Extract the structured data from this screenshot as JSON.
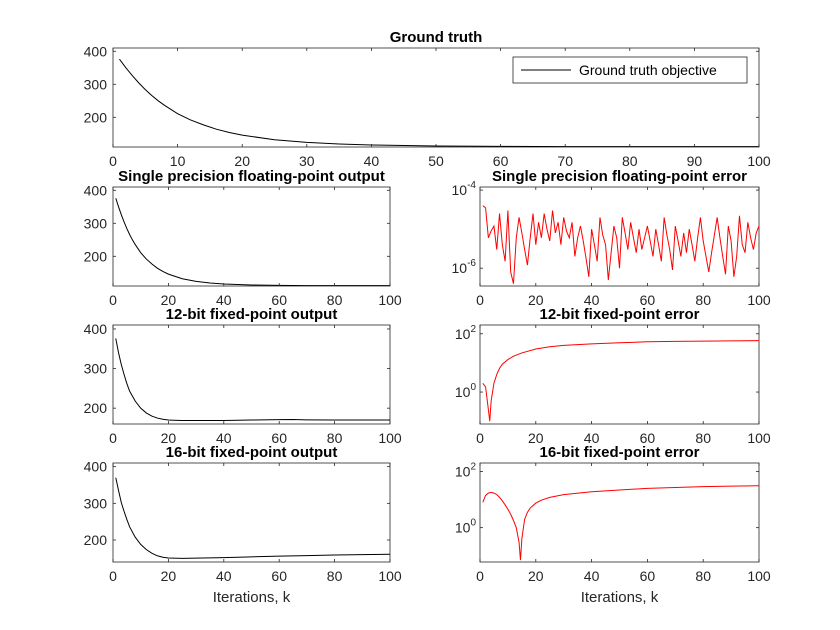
{
  "chart_data": [
    {
      "id": "ground-truth",
      "type": "line",
      "title": "Ground truth",
      "xlabel": "",
      "ylabel": "",
      "xlim": [
        0,
        100
      ],
      "ylim": [
        110,
        410
      ],
      "xticks": [
        0,
        10,
        20,
        30,
        40,
        50,
        60,
        70,
        80,
        90,
        100
      ],
      "yticks": [
        200,
        300,
        400
      ],
      "yscale": "linear",
      "legend": "top-right",
      "series": [
        {
          "name": "Ground truth objective",
          "color": "#000000",
          "x": [
            1,
            2,
            3,
            4,
            5,
            6,
            7,
            8,
            10,
            12,
            14,
            16,
            18,
            20,
            25,
            30,
            35,
            40,
            50,
            60,
            70,
            80,
            90,
            100
          ],
          "y": [
            376,
            350,
            326,
            304,
            284,
            266,
            250,
            236,
            211,
            192,
            177,
            164,
            154,
            146,
            132,
            124,
            119,
            116,
            113,
            112,
            111,
            111,
            111,
            111
          ]
        }
      ]
    },
    {
      "id": "single-output",
      "type": "line",
      "title": "Single precision floating-point output",
      "xlabel": "",
      "ylabel": "",
      "xlim": [
        0,
        100
      ],
      "ylim": [
        110,
        410
      ],
      "xticks": [
        0,
        20,
        40,
        60,
        80,
        100
      ],
      "yticks": [
        200,
        300,
        400
      ],
      "yscale": "linear",
      "series": [
        {
          "color": "#000000",
          "x": [
            1,
            2,
            3,
            4,
            5,
            6,
            7,
            8,
            10,
            12,
            14,
            16,
            18,
            20,
            25,
            30,
            35,
            40,
            50,
            60,
            70,
            80,
            90,
            100
          ],
          "y": [
            376,
            350,
            326,
            304,
            284,
            266,
            250,
            236,
            211,
            192,
            177,
            164,
            154,
            146,
            132,
            124,
            119,
            116,
            113,
            112,
            111,
            111,
            111,
            111
          ]
        }
      ]
    },
    {
      "id": "single-error",
      "type": "line",
      "title": "Single precision floating-point error",
      "xlabel": "",
      "ylabel": "",
      "xlim": [
        0,
        100
      ],
      "ylim": [
        3.5e-07,
        0.00012
      ],
      "xticks": [
        0,
        20,
        40,
        60,
        80,
        100
      ],
      "yticks": [
        {
          "value": 1e-06,
          "base": "10",
          "exp": "-6"
        },
        {
          "value": 0.0001,
          "base": "10",
          "exp": "-4"
        }
      ],
      "yscale": "log",
      "series": [
        {
          "color": "#ff0000",
          "x": [
            1,
            2,
            3,
            4,
            5,
            6,
            7,
            8,
            9,
            10,
            11,
            12,
            13,
            14,
            15,
            16,
            17,
            18,
            19,
            20,
            21,
            22,
            23,
            24,
            25,
            26,
            27,
            28,
            29,
            30,
            31,
            32,
            33,
            34,
            35,
            36,
            37,
            38,
            39,
            40,
            41,
            42,
            43,
            44,
            45,
            46,
            47,
            48,
            49,
            50,
            51,
            52,
            53,
            54,
            55,
            56,
            57,
            58,
            59,
            60,
            61,
            62,
            63,
            64,
            65,
            66,
            67,
            68,
            69,
            70,
            71,
            72,
            73,
            74,
            75,
            76,
            77,
            78,
            79,
            80,
            81,
            82,
            83,
            84,
            85,
            86,
            87,
            88,
            89,
            90,
            91,
            92,
            93,
            94,
            95,
            96,
            97,
            98,
            99,
            100
          ],
          "y": [
            4e-05,
            3.5e-05,
            6e-06,
            9e-06,
            1.2e-05,
            3e-06,
            2.5e-05,
            4e-06,
            1.5e-06,
            3e-05,
            8e-07,
            4e-07,
            6e-06,
            2e-05,
            8e-06,
            3e-06,
            1.2e-06,
            6e-06,
            2.5e-05,
            4e-06,
            1.5e-05,
            6e-06,
            2.5e-05,
            1e-05,
            5e-06,
            3e-05,
            8e-06,
            1.5e-05,
            4e-06,
            2e-05,
            9e-06,
            6e-06,
            1.5e-05,
            2e-06,
            6e-06,
            1.2e-05,
            5e-06,
            1.8e-06,
            6e-07,
            1e-05,
            4e-06,
            1.5e-06,
            2e-05,
            7e-06,
            4e-06,
            5e-07,
            2.5e-06,
            1.2e-05,
            6e-06,
            1e-06,
            2e-05,
            8e-06,
            3e-06,
            1.5e-05,
            6e-06,
            2.5e-06,
            1e-05,
            3e-06,
            6e-06,
            1.2e-05,
            5e-06,
            2e-06,
            1e-05,
            4e-06,
            1.5e-06,
            2e-05,
            7e-06,
            3e-06,
            9e-07,
            1.2e-05,
            5e-06,
            2e-06,
            8e-06,
            2.5e-06,
            1e-05,
            4e-06,
            1.5e-06,
            6e-06,
            2e-05,
            5e-06,
            2e-06,
            8e-07,
            2.5e-06,
            7e-06,
            2e-05,
            6e-06,
            2e-06,
            7e-07,
            1.2e-05,
            5e-06,
            6e-07,
            2e-06,
            2.2e-05,
            4e-06,
            2.5e-06,
            1.5e-05,
            6e-06,
            3e-06,
            8e-06,
            1.2e-05
          ]
        }
      ]
    },
    {
      "id": "fixed12-output",
      "type": "line",
      "title": "12-bit fixed-point output",
      "xlabel": "",
      "ylabel": "",
      "xlim": [
        0,
        100
      ],
      "ylim": [
        160,
        410
      ],
      "xticks": [
        0,
        20,
        40,
        60,
        80,
        100
      ],
      "yticks": [
        200,
        300,
        400
      ],
      "yscale": "linear",
      "series": [
        {
          "color": "#000000",
          "x": [
            1,
            2,
            3,
            4,
            5,
            6,
            8,
            10,
            12,
            14,
            16,
            18,
            20,
            22,
            25,
            30,
            40,
            50,
            60,
            65,
            70,
            80,
            90,
            100
          ],
          "y": [
            376,
            340,
            310,
            285,
            262,
            243,
            218,
            200,
            188,
            180,
            175,
            172,
            170,
            169.5,
            169,
            169,
            169,
            170,
            171,
            171.5,
            170.5,
            170,
            170,
            170
          ]
        }
      ]
    },
    {
      "id": "fixed12-error",
      "type": "line",
      "title": "12-bit fixed-point error",
      "xlabel": "",
      "ylabel": "",
      "xlim": [
        0,
        100
      ],
      "ylim": [
        0.08,
        200
      ],
      "xticks": [
        0,
        20,
        40,
        60,
        80,
        100
      ],
      "yticks": [
        {
          "value": 1,
          "base": "10",
          "exp": "0"
        },
        {
          "value": 100,
          "base": "10",
          "exp": "2"
        }
      ],
      "yscale": "log",
      "series": [
        {
          "color": "#ff0000",
          "x": [
            1,
            2,
            3,
            3.5,
            4,
            5,
            6,
            7,
            8,
            10,
            12,
            15,
            20,
            25,
            30,
            40,
            50,
            60,
            70,
            80,
            90,
            100
          ],
          "y": [
            2.0,
            1.5,
            0.25,
            0.1,
            0.5,
            2.0,
            4.0,
            6.5,
            9.0,
            13,
            17,
            22,
            30,
            36,
            40,
            45,
            49,
            53,
            55,
            56,
            57,
            58
          ]
        }
      ]
    },
    {
      "id": "fixed16-output",
      "type": "line",
      "title": "16-bit fixed-point output",
      "xlabel": "Iterations, k",
      "ylabel": "",
      "xlim": [
        0,
        100
      ],
      "ylim": [
        140,
        410
      ],
      "xticks": [
        0,
        20,
        40,
        60,
        80,
        100
      ],
      "yticks": [
        200,
        300,
        400
      ],
      "yscale": "linear",
      "series": [
        {
          "color": "#000000",
          "x": [
            1,
            2,
            3,
            4,
            5,
            6,
            8,
            10,
            12,
            14,
            16,
            18,
            20,
            25,
            30,
            40,
            50,
            60,
            70,
            80,
            90,
            100
          ],
          "y": [
            370,
            335,
            302,
            278,
            256,
            236,
            208,
            188,
            174,
            164,
            157,
            153,
            151,
            150,
            150.5,
            152,
            154,
            156,
            157.5,
            159,
            160,
            161
          ]
        }
      ]
    },
    {
      "id": "fixed16-error",
      "type": "line",
      "title": "16-bit fixed-point error",
      "xlabel": "Iterations, k",
      "ylabel": "",
      "xlim": [
        0,
        100
      ],
      "ylim": [
        0.06,
        200
      ],
      "xticks": [
        0,
        20,
        40,
        60,
        80,
        100
      ],
      "yticks": [
        {
          "value": 1,
          "base": "10",
          "exp": "0"
        },
        {
          "value": 100,
          "base": "10",
          "exp": "2"
        }
      ],
      "yscale": "log",
      "series": [
        {
          "color": "#ff0000",
          "x": [
            1,
            2,
            3,
            4,
            5,
            6,
            7,
            8,
            9,
            10,
            11,
            12,
            13,
            14,
            14.5,
            15,
            16,
            17,
            18,
            20,
            22,
            25,
            30,
            40,
            50,
            60,
            70,
            80,
            90,
            100
          ],
          "y": [
            8,
            14,
            17,
            18,
            17,
            15,
            12,
            9,
            6.5,
            4.5,
            3,
            1.8,
            1.0,
            0.3,
            0.07,
            0.4,
            2.0,
            3.5,
            5.0,
            7.5,
            9.5,
            12,
            15,
            19,
            22,
            25,
            27,
            29,
            30,
            31
          ]
        }
      ]
    }
  ]
}
